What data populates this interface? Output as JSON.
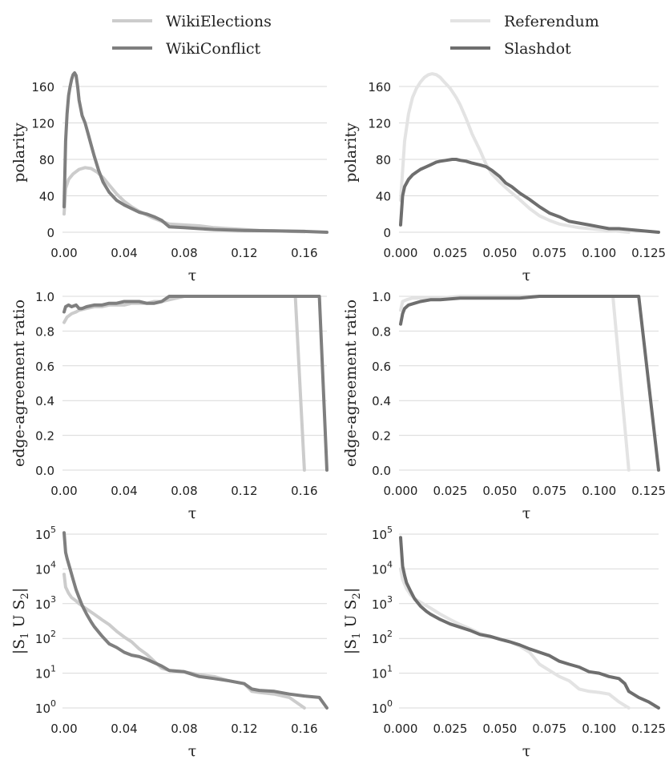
{
  "legends": [
    {
      "entries": [
        {
          "label": "WikiElections",
          "color": "#cccccc"
        },
        {
          "label": "WikiConflict",
          "color": "#7f7f7f"
        }
      ]
    },
    {
      "entries": [
        {
          "label": "Referendum",
          "color": "#e3e3e3"
        },
        {
          "label": "Slashdot",
          "color": "#6e6e6e"
        }
      ]
    }
  ],
  "chart_data": [
    {
      "type": "line",
      "title": "",
      "xlabel": "τ",
      "ylabel": "polarity",
      "xlim": [
        0,
        0.175
      ],
      "ylim": [
        0,
        175
      ],
      "yscale": "linear",
      "xticks": [
        0,
        0.04,
        0.08,
        0.12,
        0.16
      ],
      "xtick_labels": [
        "0.00",
        "0.04",
        "0.08",
        "0.12",
        "0.16"
      ],
      "yticks": [
        0,
        40,
        80,
        120,
        160
      ],
      "ytick_labels": [
        "0",
        "40",
        "80",
        "120",
        "160"
      ],
      "series": [
        {
          "name": "WikiElections",
          "color": "#cccccc",
          "x": [
            0,
            0.001,
            0.003,
            0.006,
            0.01,
            0.014,
            0.018,
            0.022,
            0.026,
            0.03,
            0.035,
            0.04,
            0.045,
            0.05,
            0.055,
            0.06,
            0.065,
            0.07,
            0.08,
            0.09,
            0.1,
            0.11,
            0.12,
            0.13,
            0.14,
            0.15,
            0.16
          ],
          "y": [
            20,
            48,
            58,
            64,
            69,
            71,
            70,
            66,
            60,
            52,
            42,
            34,
            28,
            23,
            19,
            15,
            12,
            9,
            8,
            7,
            5,
            4,
            3,
            2,
            1.5,
            1,
            0.5
          ]
        },
        {
          "name": "WikiConflict",
          "color": "#7f7f7f",
          "x": [
            0,
            0.001,
            0.002,
            0.003,
            0.004,
            0.005,
            0.006,
            0.007,
            0.008,
            0.009,
            0.01,
            0.012,
            0.014,
            0.016,
            0.018,
            0.02,
            0.023,
            0.026,
            0.03,
            0.035,
            0.04,
            0.045,
            0.05,
            0.055,
            0.06,
            0.065,
            0.07,
            0.08,
            0.09,
            0.1,
            0.12,
            0.14,
            0.16,
            0.175
          ],
          "y": [
            28,
            100,
            130,
            150,
            160,
            168,
            173,
            175,
            172,
            160,
            145,
            128,
            120,
            108,
            96,
            84,
            68,
            55,
            44,
            35,
            30,
            26,
            22,
            20,
            17,
            13,
            6,
            5,
            4,
            3,
            2,
            1.5,
            1,
            0
          ]
        }
      ]
    },
    {
      "type": "line",
      "title": "",
      "xlabel": "τ",
      "ylabel": "polarity",
      "xlim": [
        0,
        0.13
      ],
      "ylim": [
        0,
        175
      ],
      "yscale": "linear",
      "xticks": [
        0,
        0.025,
        0.05,
        0.075,
        0.1,
        0.125
      ],
      "xtick_labels": [
        "0.000",
        "0.025",
        "0.050",
        "0.075",
        "0.100",
        "0.125"
      ],
      "yticks": [
        0,
        40,
        80,
        120,
        160
      ],
      "ytick_labels": [
        "0",
        "40",
        "80",
        "120",
        "160"
      ],
      "series": [
        {
          "name": "Referendum",
          "color": "#e3e3e3",
          "x": [
            0,
            0.002,
            0.004,
            0.006,
            0.008,
            0.01,
            0.012,
            0.014,
            0.016,
            0.018,
            0.02,
            0.022,
            0.025,
            0.028,
            0.03,
            0.033,
            0.036,
            0.04,
            0.043,
            0.046,
            0.05,
            0.055,
            0.06,
            0.065,
            0.07,
            0.075,
            0.08,
            0.09,
            0.1,
            0.11,
            0.115
          ],
          "y": [
            35,
            100,
            130,
            148,
            158,
            165,
            170,
            173,
            174,
            173,
            170,
            165,
            158,
            148,
            140,
            125,
            108,
            90,
            75,
            64,
            55,
            45,
            36,
            26,
            18,
            13,
            9,
            5,
            3,
            1,
            0
          ]
        },
        {
          "name": "Slashdot",
          "color": "#6e6e6e",
          "x": [
            0,
            0.001,
            0.002,
            0.004,
            0.006,
            0.008,
            0.01,
            0.012,
            0.015,
            0.018,
            0.02,
            0.023,
            0.026,
            0.028,
            0.03,
            0.033,
            0.036,
            0.04,
            0.043,
            0.046,
            0.05,
            0.053,
            0.056,
            0.06,
            0.065,
            0.07,
            0.075,
            0.08,
            0.085,
            0.09,
            0.095,
            0.1,
            0.105,
            0.11,
            0.115,
            0.12,
            0.125,
            0.13
          ],
          "y": [
            8,
            40,
            50,
            58,
            63,
            66,
            69,
            71,
            74,
            77,
            78,
            79,
            80,
            80,
            79,
            78,
            76,
            74,
            72,
            68,
            61,
            54,
            50,
            43,
            36,
            28,
            21,
            17,
            12,
            10,
            8,
            6,
            4,
            4,
            3,
            2,
            1,
            0
          ]
        }
      ]
    },
    {
      "type": "line",
      "title": "",
      "xlabel": "τ",
      "ylabel": "edge-agreement ratio",
      "xlim": [
        0,
        0.175
      ],
      "ylim": [
        0,
        1.0
      ],
      "yscale": "linear",
      "xticks": [
        0,
        0.04,
        0.08,
        0.12,
        0.16
      ],
      "xtick_labels": [
        "0.00",
        "0.04",
        "0.08",
        "0.12",
        "0.16"
      ],
      "yticks": [
        0,
        0.2,
        0.4,
        0.6,
        0.8,
        1.0
      ],
      "ytick_labels": [
        "0.0",
        "0.2",
        "0.4",
        "0.6",
        "0.8",
        "1.0"
      ],
      "series": [
        {
          "name": "WikiElections",
          "color": "#cccccc",
          "x": [
            0,
            0.002,
            0.005,
            0.008,
            0.01,
            0.015,
            0.02,
            0.025,
            0.03,
            0.035,
            0.04,
            0.045,
            0.05,
            0.055,
            0.06,
            0.065,
            0.07,
            0.075,
            0.08,
            0.1,
            0.12,
            0.14,
            0.154,
            0.16
          ],
          "y": [
            0.85,
            0.88,
            0.9,
            0.91,
            0.92,
            0.93,
            0.94,
            0.94,
            0.95,
            0.95,
            0.95,
            0.96,
            0.96,
            0.96,
            0.97,
            0.97,
            0.98,
            0.99,
            1.0,
            1.0,
            1.0,
            1.0,
            1.0,
            0.0
          ]
        },
        {
          "name": "WikiConflict",
          "color": "#7f7f7f",
          "x": [
            0,
            0.001,
            0.003,
            0.005,
            0.008,
            0.01,
            0.012,
            0.015,
            0.02,
            0.025,
            0.03,
            0.035,
            0.04,
            0.045,
            0.05,
            0.055,
            0.06,
            0.065,
            0.07,
            0.075,
            0.08,
            0.1,
            0.12,
            0.14,
            0.16,
            0.17,
            0.175
          ],
          "y": [
            0.91,
            0.94,
            0.95,
            0.94,
            0.95,
            0.93,
            0.93,
            0.94,
            0.95,
            0.95,
            0.96,
            0.96,
            0.97,
            0.97,
            0.97,
            0.96,
            0.96,
            0.97,
            1.0,
            1.0,
            1.0,
            1.0,
            1.0,
            1.0,
            1.0,
            1.0,
            0.0
          ]
        }
      ]
    },
    {
      "type": "line",
      "title": "",
      "xlabel": "τ",
      "ylabel": "edge-agreement ratio",
      "xlim": [
        0,
        0.13
      ],
      "ylim": [
        0,
        1.0
      ],
      "yscale": "linear",
      "xticks": [
        0,
        0.025,
        0.05,
        0.075,
        0.1,
        0.125
      ],
      "xtick_labels": [
        "0.000",
        "0.025",
        "0.050",
        "0.075",
        "0.100",
        "0.125"
      ],
      "yticks": [
        0,
        0.2,
        0.4,
        0.6,
        0.8,
        1.0
      ],
      "ytick_labels": [
        "0.0",
        "0.2",
        "0.4",
        "0.6",
        "0.8",
        "1.0"
      ],
      "series": [
        {
          "name": "Referendum",
          "color": "#e3e3e3",
          "x": [
            0,
            0.001,
            0.003,
            0.006,
            0.01,
            0.02,
            0.03,
            0.05,
            0.08,
            0.1,
            0.107,
            0.115
          ],
          "y": [
            0.92,
            0.97,
            0.98,
            0.99,
            0.99,
            0.99,
            1.0,
            1.0,
            1.0,
            1.0,
            1.0,
            0.0
          ]
        },
        {
          "name": "Slashdot",
          "color": "#6e6e6e",
          "x": [
            0,
            0.001,
            0.002,
            0.004,
            0.007,
            0.01,
            0.015,
            0.02,
            0.03,
            0.04,
            0.05,
            0.06,
            0.07,
            0.08,
            0.1,
            0.12,
            0.13
          ],
          "y": [
            0.84,
            0.9,
            0.93,
            0.95,
            0.96,
            0.97,
            0.98,
            0.98,
            0.99,
            0.99,
            0.99,
            0.99,
            1.0,
            1.0,
            1.0,
            1.0,
            0.0
          ]
        }
      ]
    },
    {
      "type": "line",
      "title": "",
      "xlabel": "τ",
      "ylabel": "|S1 U S2|",
      "xlim": [
        0,
        0.175
      ],
      "ylim": [
        1,
        100000
      ],
      "yscale": "log",
      "xticks": [
        0,
        0.04,
        0.08,
        0.12,
        0.16
      ],
      "xtick_labels": [
        "0.00",
        "0.04",
        "0.08",
        "0.12",
        "0.16"
      ],
      "yticks": [
        1,
        10,
        100,
        1000,
        10000,
        100000
      ],
      "ytick_exponents": [
        "0",
        "1",
        "2",
        "3",
        "4",
        "5"
      ],
      "series": [
        {
          "name": "WikiElections",
          "color": "#cccccc",
          "x": [
            0,
            0.001,
            0.003,
            0.005,
            0.008,
            0.01,
            0.015,
            0.02,
            0.025,
            0.03,
            0.035,
            0.04,
            0.045,
            0.05,
            0.055,
            0.06,
            0.065,
            0.07,
            0.08,
            0.09,
            0.1,
            0.11,
            0.12,
            0.125,
            0.13,
            0.14,
            0.15,
            0.16
          ],
          "y": [
            7000,
            3000,
            2000,
            1500,
            1200,
            1000,
            700,
            500,
            350,
            250,
            160,
            110,
            80,
            50,
            35,
            22,
            14,
            12,
            11,
            9,
            8,
            6,
            5,
            3,
            2.8,
            2.5,
            2,
            1
          ]
        },
        {
          "name": "WikiConflict",
          "color": "#7f7f7f",
          "x": [
            0,
            0.001,
            0.002,
            0.004,
            0.006,
            0.008,
            0.01,
            0.012,
            0.015,
            0.018,
            0.02,
            0.025,
            0.03,
            0.035,
            0.04,
            0.045,
            0.05,
            0.055,
            0.06,
            0.065,
            0.07,
            0.08,
            0.09,
            0.1,
            0.11,
            0.12,
            0.125,
            0.13,
            0.14,
            0.15,
            0.16,
            0.17,
            0.175
          ],
          "y": [
            110000,
            30000,
            20000,
            10000,
            5000,
            2500,
            1500,
            900,
            500,
            300,
            220,
            120,
            70,
            55,
            40,
            33,
            30,
            25,
            20,
            16,
            12,
            11,
            8,
            7,
            6,
            5,
            3.5,
            3.2,
            3,
            2.5,
            2.2,
            2,
            1
          ]
        }
      ]
    },
    {
      "type": "line",
      "title": "",
      "xlabel": "τ",
      "ylabel": "|S1 U S2|",
      "xlim": [
        0,
        0.13
      ],
      "ylim": [
        1,
        100000
      ],
      "yscale": "log",
      "xticks": [
        0,
        0.025,
        0.05,
        0.075,
        0.1,
        0.125
      ],
      "xtick_labels": [
        "0.000",
        "0.025",
        "0.050",
        "0.075",
        "0.100",
        "0.125"
      ],
      "yticks": [
        1,
        10,
        100,
        1000,
        10000,
        100000
      ],
      "ytick_exponents": [
        "0",
        "1",
        "2",
        "3",
        "4",
        "5"
      ],
      "series": [
        {
          "name": "Referendum",
          "color": "#e3e3e3",
          "x": [
            0,
            0.001,
            0.003,
            0.005,
            0.008,
            0.01,
            0.015,
            0.02,
            0.025,
            0.03,
            0.035,
            0.04,
            0.045,
            0.05,
            0.055,
            0.06,
            0.065,
            0.07,
            0.075,
            0.08,
            0.085,
            0.09,
            0.095,
            0.1,
            0.105,
            0.11,
            0.115
          ],
          "y": [
            10000,
            5000,
            2700,
            1800,
            1300,
            1100,
            750,
            500,
            350,
            250,
            190,
            140,
            115,
            95,
            80,
            60,
            40,
            18,
            12,
            8,
            6,
            3.5,
            3,
            2.8,
            2.5,
            1.5,
            1
          ]
        },
        {
          "name": "Slashdot",
          "color": "#6e6e6e",
          "x": [
            0,
            0.001,
            0.002,
            0.003,
            0.005,
            0.007,
            0.01,
            0.013,
            0.015,
            0.02,
            0.025,
            0.03,
            0.035,
            0.04,
            0.045,
            0.05,
            0.055,
            0.06,
            0.065,
            0.07,
            0.075,
            0.08,
            0.085,
            0.09,
            0.095,
            0.1,
            0.105,
            0.11,
            0.113,
            0.115,
            0.12,
            0.125,
            0.13
          ],
          "y": [
            80000,
            12000,
            6500,
            4000,
            2300,
            1400,
            850,
            600,
            500,
            350,
            260,
            210,
            170,
            130,
            115,
            95,
            80,
            65,
            50,
            40,
            32,
            22,
            18,
            15,
            11,
            10,
            8,
            7,
            5,
            3,
            2,
            1.5,
            1
          ]
        }
      ]
    }
  ]
}
